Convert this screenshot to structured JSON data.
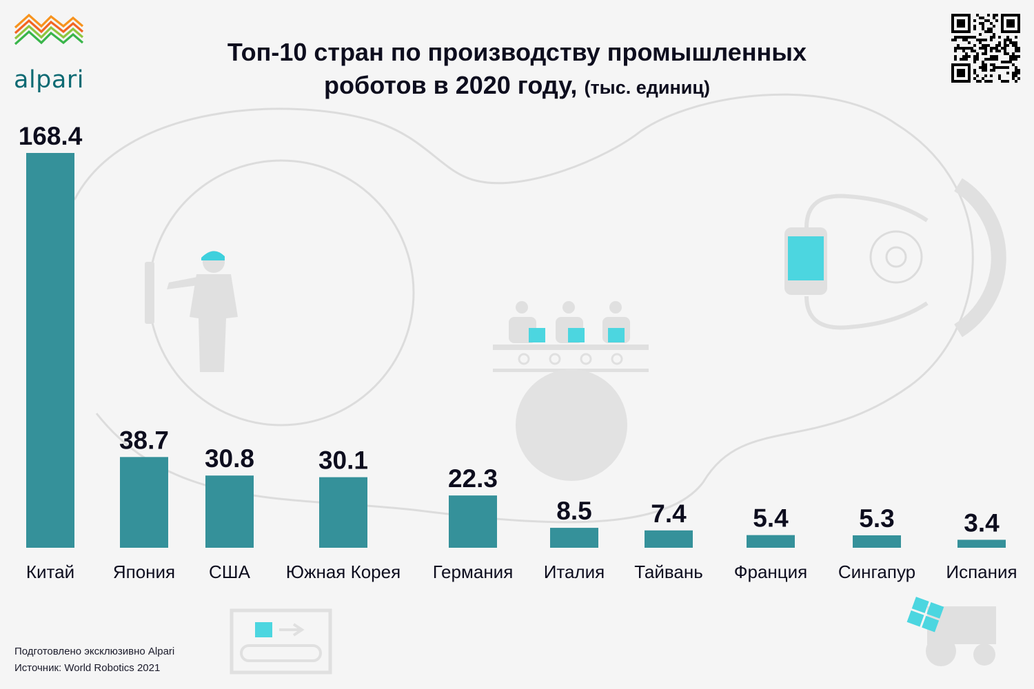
{
  "brand": {
    "name": "alpari"
  },
  "header": {
    "title_line1": "Топ-10 стран по производству промышленных",
    "title_line2": "роботов в 2020 году,",
    "title_unit": "(тыс. единиц)"
  },
  "footer": {
    "prepared_by": "Подготовлено эксклюзивно Alpari",
    "source": "Источник: World Robotics 2021"
  },
  "colors": {
    "bar": "#35919a",
    "accent": "#4cd6e0",
    "illustration": "#e2e2e2"
  },
  "icons": [
    "alpari-logo-icon",
    "qr-code-icon",
    "worker-icon",
    "assembly-line-icon",
    "robot-arm-icon",
    "conveyor-box-icon",
    "forklift-icon"
  ],
  "chart_data": {
    "type": "bar",
    "title": "Топ-10 стран по производству промышленных роботов в 2020 году, (тыс. единиц)",
    "categories": [
      "Китай",
      "Япония",
      "США",
      "Южная Корея",
      "Германия",
      "Италия",
      "Тайвань",
      "Франция",
      "Сингапур",
      "Испания"
    ],
    "values": [
      168.4,
      38.7,
      30.8,
      30.1,
      22.3,
      8.5,
      7.4,
      5.4,
      5.3,
      3.4
    ],
    "value_labels": [
      "168.4",
      "38.7",
      "30.8",
      "30.1",
      "22.3",
      "8.5",
      "7.4",
      "5.4",
      "5.3",
      "3.4"
    ],
    "xlabel": "",
    "ylabel": "",
    "ylim": [
      0,
      168.4
    ],
    "grid": false,
    "legend": "none"
  }
}
